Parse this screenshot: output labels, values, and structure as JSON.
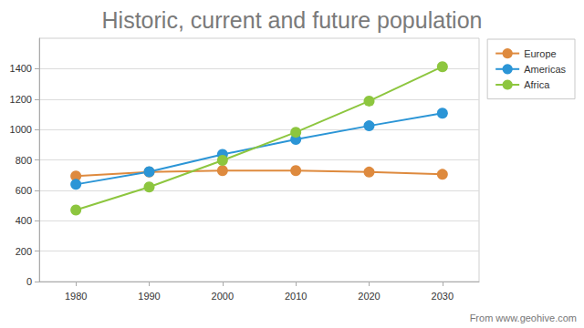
{
  "chart_data": {
    "type": "line",
    "title": "Historic, current and future population",
    "annotations": [
      "From www.geohive.com"
    ],
    "categories": [
      "1980",
      "1990",
      "2000",
      "2010",
      "2020",
      "2030"
    ],
    "series": [
      {
        "name": "Europe",
        "color": "#de8a3e",
        "values": [
          694,
          721,
          730,
          730,
          720,
          705
        ]
      },
      {
        "name": "Americas",
        "color": "#2b95d6",
        "values": [
          639,
          722,
          836,
          935,
          1024,
          1107
        ]
      },
      {
        "name": "Africa",
        "color": "#8dc63f",
        "values": [
          470,
          622,
          797,
          982,
          1187,
          1413
        ]
      }
    ],
    "ylim": [
      0,
      1600
    ],
    "yticks": [
      0,
      200,
      400,
      600,
      800,
      1000,
      1200,
      1400
    ],
    "grid": true,
    "legend": "top-right",
    "marker": "circle",
    "line_style": "solid"
  }
}
